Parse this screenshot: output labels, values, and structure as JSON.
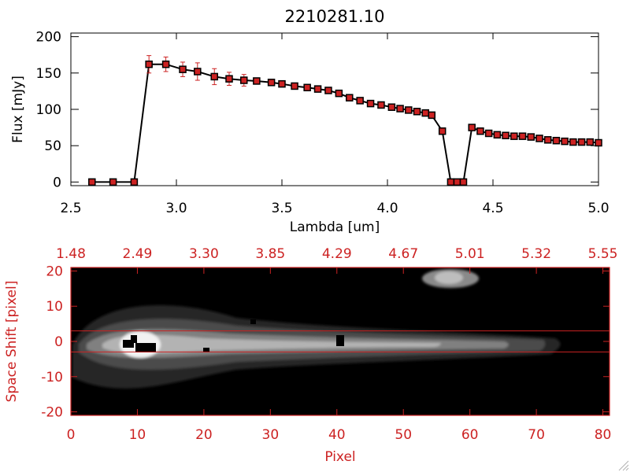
{
  "chart_data": [
    {
      "type": "line",
      "title": "2210281.10",
      "xlabel": "Lambda [um]",
      "ylabel": "Flux [mJy]",
      "xlim": [
        2.5,
        5.0
      ],
      "ylim": [
        -5,
        205
      ],
      "x_ticks": [
        "2.5",
        "3.0",
        "3.5",
        "4.0",
        "4.5",
        "5.0"
      ],
      "y_ticks": [
        "0",
        "50",
        "100",
        "150",
        "200"
      ],
      "x_tick_values": [
        2.5,
        3.0,
        3.5,
        4.0,
        4.5,
        5.0
      ],
      "y_tick_values": [
        0,
        50,
        100,
        150,
        200
      ],
      "series": [
        {
          "x": [
            2.6,
            2.7,
            2.8,
            2.87,
            2.95,
            3.03,
            3.1,
            3.18,
            3.25,
            3.32,
            3.38,
            3.45,
            3.5,
            3.56,
            3.62,
            3.67,
            3.72,
            3.77,
            3.82,
            3.87,
            3.92,
            3.97,
            4.02,
            4.06,
            4.1,
            4.14,
            4.18,
            4.21,
            4.26,
            4.3,
            4.33,
            4.36,
            4.4,
            4.44,
            4.48,
            4.52,
            4.56,
            4.6,
            4.64,
            4.68,
            4.72,
            4.76,
            4.8,
            4.84,
            4.88,
            4.92,
            4.96,
            5.0
          ],
          "values": [
            0,
            0,
            0,
            162,
            162,
            155,
            152,
            145,
            142,
            140,
            139,
            137,
            135,
            132,
            130,
            128,
            126,
            122,
            116,
            112,
            108,
            106,
            103,
            101,
            99,
            97,
            95,
            92,
            70,
            0,
            0,
            0,
            75,
            70,
            67,
            65,
            64,
            63,
            63,
            62,
            60,
            58,
            57,
            56,
            55,
            55,
            55,
            54
          ],
          "errors": [
            0,
            0,
            0,
            12,
            10,
            10,
            12,
            11,
            9,
            8,
            0,
            0,
            0,
            0,
            0,
            0,
            0,
            0,
            0,
            0,
            0,
            0,
            0,
            0,
            0,
            0,
            0,
            0,
            0,
            0,
            0,
            0,
            0,
            0,
            0,
            0,
            0,
            0,
            0,
            0,
            0,
            0,
            0,
            0,
            0,
            0,
            0,
            0
          ],
          "line_color": "#000000",
          "marker_color": "#cc2222"
        }
      ]
    },
    {
      "type": "heatmap",
      "xlabel": "Pixel",
      "ylabel": "Space Shift [pixel]",
      "xlim": [
        0,
        81
      ],
      "ylim": [
        -21,
        21
      ],
      "x_ticks": [
        "0",
        "10",
        "20",
        "30",
        "40",
        "50",
        "60",
        "70",
        "80"
      ],
      "y_ticks": [
        "-20",
        "-10",
        "0",
        "10",
        "20"
      ],
      "x_tick_values": [
        0,
        10,
        20,
        30,
        40,
        50,
        60,
        70,
        80
      ],
      "y_tick_values": [
        -20,
        -10,
        0,
        10,
        20
      ],
      "top_axis_ticks": [
        "1.48",
        "2.49",
        "3.30",
        "3.85",
        "4.29",
        "4.67",
        "5.01",
        "5.32",
        "5.55"
      ],
      "extraction_window": [
        -3,
        3
      ],
      "axis_color": "#cc2222"
    }
  ]
}
